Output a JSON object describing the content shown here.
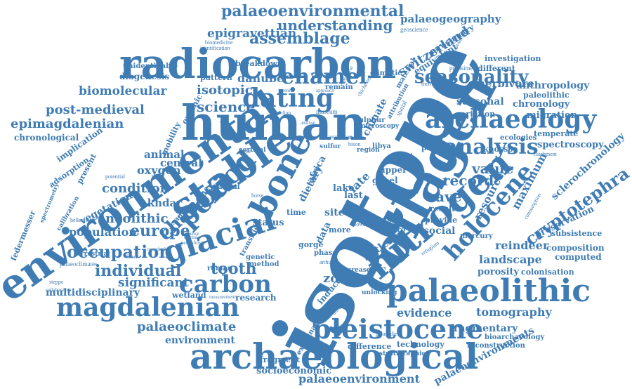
{
  "colors": {
    "word": "#3f7cb4",
    "background": "#ffffff"
  },
  "words": [
    "isotope",
    "human",
    "collagen",
    "radiocarbon",
    "environmental",
    "archaeological",
    "stable",
    "nitrogen",
    "palaeolithic",
    "archaeology",
    "pleistocene",
    "bone",
    "glacial",
    "magdalenian",
    "holocene",
    "analysis",
    "dating",
    "period",
    "carbon",
    "enamel",
    "seasonality",
    "cryptotephra",
    "palaeoenvironmental",
    "assemblage",
    "understanding",
    "palaeogeography",
    "epigravettian",
    "switzerland",
    "biomolecular",
    "post-medieval",
    "epimagdalenian",
    "science",
    "isotopic",
    "danube",
    "occupation",
    "europe",
    "individual",
    "palaeoclimate",
    "environment",
    "palaeoenvironment",
    "socioeconomic",
    "fragment",
    "evidence",
    "tomography",
    "palaeoenvironments",
    "reindeer",
    "composition",
    "landscape",
    "porosity",
    "colonisation",
    "value",
    "record",
    "cave",
    "condition",
    "neolithic",
    "population",
    "vegetation",
    "akhdar",
    "oxygen",
    "animal",
    "central",
    "change",
    "tooth",
    "zoom",
    "significant",
    "multidisciplinary",
    "herbivore",
    "chronology",
    "seasonal",
    "migration",
    "anthropology",
    "paleolithic",
    "spectroscopy",
    "temperate",
    "maximum",
    "resource",
    "sclerochronology",
    "preservation",
    "subsistence",
    "fragmentary",
    "bioarchaeology",
    "reconstruction",
    "technology",
    "difference",
    "computed",
    "investigation",
    "different",
    "diagenesis",
    "unidentifiable",
    "chronological",
    "implication",
    "adsorption",
    "federmesser",
    "spectrometry",
    "calibration",
    "present",
    "mobility",
    "organic",
    "pattern",
    "breakdown",
    "identification",
    "biomedicine",
    "geoscience",
    "porosimetry",
    "equivalent",
    "material",
    "climate",
    "africa",
    "dietary",
    "lake",
    "last",
    "upper",
    "gebel",
    "site",
    "status",
    "time",
    "social",
    "provide",
    "late",
    "antler",
    "data",
    "research",
    "wetland",
    "gorge",
    "phase",
    "more",
    "remain",
    "museum",
    "sulphur",
    "libya",
    "mercury",
    "knossos",
    "variation",
    "ecologies",
    "presence",
    "result",
    "porosimetry",
    "method",
    "arthur",
    "ecology",
    "micro",
    "stage",
    "increase",
    "unlocking",
    "palaeoclimates",
    "terrestrial",
    "hellenistic",
    "sample",
    "marine",
    "faunal",
    "cortical",
    "kettle",
    "horse",
    "lower",
    "studies",
    "bison",
    "region",
    "sulfur",
    "potential",
    "catchment",
    "consumption",
    "refugium",
    "steppe",
    "collaborative",
    "measurement",
    "examination",
    "ancestries",
    "stratigraphic",
    "palaeodiet",
    "induced",
    "climatic",
    "chichester",
    "plateau",
    "thermophilic",
    "microscopy",
    "cultural",
    "spatial",
    "genetic",
    "roman",
    "transition",
    "fauna",
    "neanderthal",
    "permafrost",
    "sequence",
    "cranial",
    "juvenile",
    "approach",
    "confirm",
    "analyse",
    "experiment",
    "temperature",
    "attribution",
    "geology"
  ]
}
